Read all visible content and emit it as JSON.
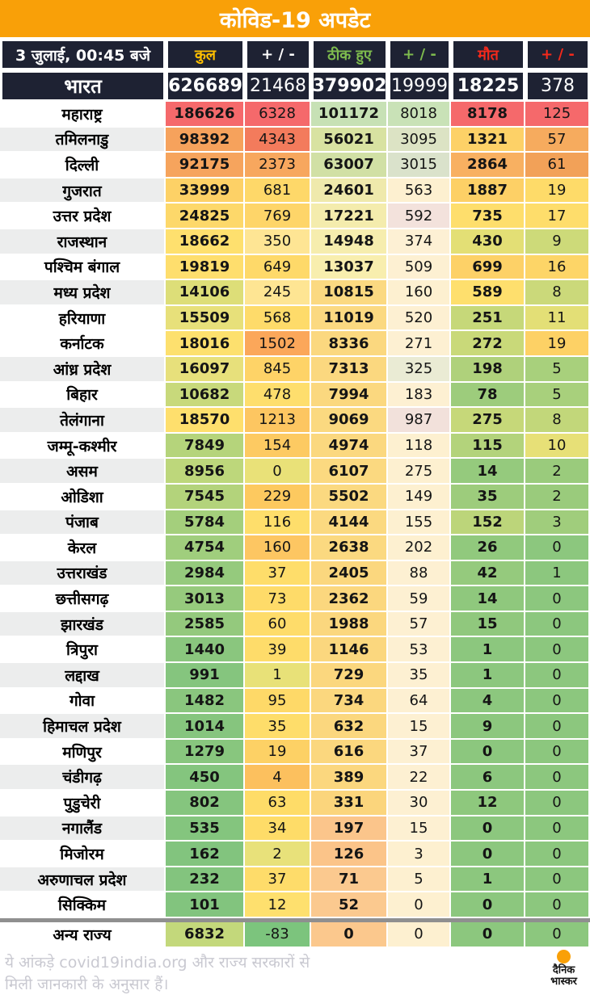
{
  "title": "कोविड-19 अपडेट",
  "header": {
    "datetime": "3 जुलाई, 00:45 बजे"
  },
  "footer": {
    "line1": "ये आंकड़े covid19india.org और राज्य सरकारों से",
    "line2": "मिली जानकारी के अनुसार हैं।",
    "logo_top": "दैनिक",
    "logo_bottom": "भास्कर",
    "logo_dot_color": "#F9A008"
  },
  "theme": {
    "banner_orange": "#F9A008",
    "header_dark": "#1E2233",
    "separator_gray": "#8F8F8F",
    "alt_row_gray": "#ECEDED"
  },
  "chart_data": {
    "type": "table",
    "title": "कोविड-19 अपडेट",
    "updated": "3 जुलाई, 00:45 बजे",
    "columns": [
      {
        "label": "कुल",
        "color": "#FFC000"
      },
      {
        "label": "+ / -",
        "color": "#FFFFFF"
      },
      {
        "label": "ठीक हुए",
        "color": "#7EBB4E"
      },
      {
        "label": "+ / -",
        "color": "#7EBB4E"
      },
      {
        "label": "मौत",
        "color": "#F5291B"
      },
      {
        "label": "+ / -",
        "color": "#F5291B"
      }
    ],
    "india": {
      "name": "भारत",
      "values": [
        626689,
        21468,
        379902,
        19999,
        18225,
        378
      ]
    },
    "rows": [
      {
        "state": "महाराष्ट्र",
        "shade": false,
        "values": [
          186626,
          6328,
          101172,
          8018,
          8178,
          125
        ],
        "colors": [
          "#F5696B",
          "#F5696B",
          "#C7E1B5",
          "#C9E2B7",
          "#F5696B",
          "#F5696B"
        ]
      },
      {
        "state": "तमिलनाडु",
        "shade": true,
        "values": [
          98392,
          4343,
          56021,
          3095,
          1321,
          57
        ],
        "colors": [
          "#F6A25C",
          "#F37B5C",
          "#D8E2A1",
          "#DCE3C4",
          "#FDD167",
          "#F6AB5E"
        ]
      },
      {
        "state": "दिल्ली",
        "shade": false,
        "values": [
          92175,
          2373,
          63007,
          3015,
          2864,
          61
        ],
        "colors": [
          "#F6A45D",
          "#F7A75E",
          "#D1E0A5",
          "#DAE2CB",
          "#F8B061",
          "#F2A158"
        ]
      },
      {
        "state": "गुजरात",
        "shade": true,
        "values": [
          33999,
          681,
          24601,
          563,
          1887,
          19
        ],
        "colors": [
          "#FDD166",
          "#FED869",
          "#EFE9AC",
          "#FDF0D0",
          "#FDD066",
          "#FEDB69"
        ]
      },
      {
        "state": "उत्तर प्रदेश",
        "shade": false,
        "values": [
          24825,
          769,
          17221,
          592,
          735,
          17
        ],
        "colors": [
          "#FDD86A",
          "#FED569",
          "#F4ECAD",
          "#F3E2DC",
          "#FEDE6C",
          "#FEDD6B"
        ]
      },
      {
        "state": "राजस्थान",
        "shade": true,
        "values": [
          18662,
          350,
          14948,
          374,
          430,
          9
        ],
        "colors": [
          "#FEE06E",
          "#FEE594",
          "#F6EDAE",
          "#FDF0D4",
          "#E3DF75",
          "#CDDA79"
        ]
      },
      {
        "state": "पश्चिम बंगाल",
        "shade": false,
        "values": [
          19819,
          649,
          13037,
          509,
          699,
          16
        ],
        "colors": [
          "#FEDE6D",
          "#FED969",
          "#F8EEAE",
          "#FDF0D2",
          "#FDD167",
          "#FDD567"
        ]
      },
      {
        "state": "मध्य प्रदेश",
        "shade": true,
        "values": [
          14106,
          245,
          10815,
          160,
          589,
          8
        ],
        "colors": [
          "#DDDE78",
          "#FEE593",
          "#FBD981",
          "#FDF0D0",
          "#FEDF6D",
          "#CBD97A"
        ]
      },
      {
        "state": "हरियाणा",
        "shade": false,
        "values": [
          15509,
          568,
          11019,
          520,
          251,
          11
        ],
        "colors": [
          "#E7E07A",
          "#FEDB6A",
          "#FBD981",
          "#FDF0D2",
          "#C6D879",
          "#E3DF76"
        ]
      },
      {
        "state": "कर्नाटक",
        "shade": false,
        "values": [
          18016,
          1502,
          8336,
          271,
          272,
          19
        ],
        "colors": [
          "#FDE06E",
          "#FBA75A",
          "#FBD87F",
          "#FDF0D2",
          "#C9D979",
          "#FDD165"
        ]
      },
      {
        "state": "आंध्र प्रदेश",
        "shade": true,
        "values": [
          16097,
          845,
          7313,
          325,
          198,
          5
        ],
        "colors": [
          "#E7E07B",
          "#FED367",
          "#FBD87F",
          "#EAEBD4",
          "#AFD17B",
          "#A8D07C"
        ]
      },
      {
        "state": "बिहार",
        "shade": false,
        "values": [
          10682,
          478,
          7994,
          183,
          78,
          5
        ],
        "colors": [
          "#C8D97B",
          "#FEDE6D",
          "#FBD87F",
          "#FDF0D2",
          "#9DCC7C",
          "#A8D07C"
        ]
      },
      {
        "state": "तेलंगाना",
        "shade": true,
        "values": [
          18570,
          1213,
          9069,
          987,
          275,
          8
        ],
        "colors": [
          "#FEDF6D",
          "#FDC661",
          "#FBD980",
          "#F2E1DB",
          "#C6D879",
          "#C2D77A"
        ]
      },
      {
        "state": "जम्मू-कश्मीर",
        "shade": false,
        "values": [
          7849,
          154,
          4974,
          118,
          115,
          10
        ],
        "colors": [
          "#B5D47B",
          "#FDCA62",
          "#FBD87F",
          "#FDF0D0",
          "#B3D37B",
          "#E7E077"
        ]
      },
      {
        "state": "असम",
        "shade": true,
        "values": [
          8956,
          0,
          6107,
          275,
          14,
          2
        ],
        "colors": [
          "#BDD77B",
          "#E9E178",
          "#FBD980",
          "#FDF0D0",
          "#95CA7D",
          "#9ACB7C"
        ]
      },
      {
        "state": "ओडिशा",
        "shade": false,
        "values": [
          7545,
          229,
          5502,
          149,
          35,
          2
        ],
        "colors": [
          "#B3D37B",
          "#FDC95F",
          "#FBD980",
          "#FDF0D0",
          "#9DCC7C",
          "#9ACB7C"
        ]
      },
      {
        "state": "पंजाब",
        "shade": true,
        "values": [
          5784,
          116,
          4144,
          155,
          152,
          3
        ],
        "colors": [
          "#A4CF7C",
          "#FEDE6B",
          "#FBD980",
          "#FDF0D0",
          "#BCD57A",
          "#A0CD7C"
        ]
      },
      {
        "state": "केरल",
        "shade": false,
        "values": [
          4754,
          160,
          2638,
          202,
          26,
          0
        ],
        "colors": [
          "#A0CE7D",
          "#FDC662",
          "#FBD980",
          "#FDF0D0",
          "#91C97D",
          "#8CC77E"
        ]
      },
      {
        "state": "उत्तराखंड",
        "shade": true,
        "values": [
          2984,
          37,
          2405,
          88,
          42,
          1
        ],
        "colors": [
          "#95CA7D",
          "#FEDD6A",
          "#FBD77E",
          "#FDF0D2",
          "#95CA7D",
          "#8CC77E"
        ]
      },
      {
        "state": "छत्तीसगढ़",
        "shade": false,
        "values": [
          3013,
          73,
          2362,
          59,
          14,
          0
        ],
        "colors": [
          "#96CA7D",
          "#FEDB69",
          "#FBD77E",
          "#FDF0D2",
          "#8FC87D",
          "#8CC77E"
        ]
      },
      {
        "state": "झारखंड",
        "shade": true,
        "values": [
          2585,
          60,
          1988,
          57,
          15,
          0
        ],
        "colors": [
          "#94C97D",
          "#FEDC6A",
          "#FBD77E",
          "#FDF0D2",
          "#90C87D",
          "#8CC77E"
        ]
      },
      {
        "state": "त्रिपुरा",
        "shade": false,
        "values": [
          1440,
          39,
          1146,
          53,
          1,
          0
        ],
        "colors": [
          "#8AC67E",
          "#FEDC6A",
          "#FBD77E",
          "#FDF0D2",
          "#8CC77E",
          "#8CC77E"
        ]
      },
      {
        "state": "लद्दाख",
        "shade": true,
        "values": [
          991,
          1,
          729,
          35,
          1,
          0
        ],
        "colors": [
          "#85C57E",
          "#E8E178",
          "#FBD77E",
          "#FDF0D2",
          "#8CC77E",
          "#8CC77E"
        ]
      },
      {
        "state": "गोवा",
        "shade": false,
        "values": [
          1482,
          95,
          734,
          64,
          4,
          0
        ],
        "colors": [
          "#8AC67E",
          "#FED968",
          "#FBD77E",
          "#FDF0D2",
          "#8CC77E",
          "#8CC77E"
        ]
      },
      {
        "state": "हिमाचल प्रदेश",
        "shade": true,
        "values": [
          1014,
          35,
          632,
          15,
          9,
          0
        ],
        "colors": [
          "#86C57E",
          "#FEDD6A",
          "#FBD77E",
          "#FDF0D2",
          "#8CC77E",
          "#8CC77E"
        ]
      },
      {
        "state": "मणिपुर",
        "shade": false,
        "values": [
          1279,
          19,
          616,
          37,
          0,
          0
        ],
        "colors": [
          "#88C67E",
          "#FDD165",
          "#FBD77E",
          "#FDF0D2",
          "#8CC77E",
          "#8CC77E"
        ]
      },
      {
        "state": "चंडीगढ़",
        "shade": true,
        "values": [
          450,
          4,
          389,
          22,
          6,
          0
        ],
        "colors": [
          "#84C57E",
          "#FCC05E",
          "#FBD77E",
          "#FDF0D2",
          "#8CC77E",
          "#8CC77E"
        ]
      },
      {
        "state": "पुडुचेरी",
        "shade": false,
        "values": [
          802,
          63,
          331,
          30,
          12,
          0
        ],
        "colors": [
          "#85C57E",
          "#FEDC68",
          "#FBD57C",
          "#FDF0D2",
          "#8EC87D",
          "#8CC77E"
        ]
      },
      {
        "state": "नगालैंड",
        "shade": true,
        "values": [
          535,
          34,
          197,
          15,
          0,
          0
        ],
        "colors": [
          "#84C57E",
          "#FEDC68",
          "#FBC58B",
          "#FDF0D2",
          "#8CC77E",
          "#8CC77E"
        ]
      },
      {
        "state": "मिजोरम",
        "shade": false,
        "values": [
          162,
          2,
          126,
          3,
          0,
          0
        ],
        "colors": [
          "#82C47E",
          "#E8E17A",
          "#FBC489",
          "#FDF0D0",
          "#8CC77E",
          "#8CC77E"
        ]
      },
      {
        "state": "अरुणाचल प्रदेश",
        "shade": true,
        "values": [
          232,
          37,
          71,
          5,
          1,
          0
        ],
        "colors": [
          "#83C47E",
          "#FEDC6A",
          "#FBC98F",
          "#FDF0D0",
          "#8CC77E",
          "#8CC77E"
        ]
      },
      {
        "state": "सिक्किम",
        "shade": false,
        "values": [
          101,
          12,
          52,
          0,
          0,
          0
        ],
        "colors": [
          "#82C47E",
          "#FEE06E",
          "#FBC98F",
          "#FDF0D0",
          "#8CC77E",
          "#8CC77E"
        ]
      },
      {
        "state": "अन्य राज्य",
        "shade": false,
        "separator_above": true,
        "values": [
          6832,
          -83,
          0,
          0,
          0,
          0
        ],
        "colors": [
          "#C3D87B",
          "#7CC47D",
          "#FBC88D",
          "#FDF0D0",
          "#8CC77E",
          "#8CC77E"
        ]
      }
    ]
  }
}
